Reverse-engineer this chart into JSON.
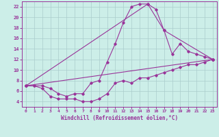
{
  "xlabel": "Windchill (Refroidissement éolien,°C)",
  "bg_color": "#cceee8",
  "grid_color": "#aacccc",
  "line_color": "#993399",
  "ylim": [
    3,
    23
  ],
  "xlim": [
    -0.5,
    23.5
  ],
  "yticks": [
    4,
    6,
    8,
    10,
    12,
    14,
    16,
    18,
    20,
    22
  ],
  "xticks": [
    0,
    1,
    2,
    3,
    4,
    5,
    6,
    7,
    8,
    9,
    10,
    11,
    12,
    13,
    14,
    15,
    16,
    17,
    18,
    19,
    20,
    21,
    22,
    23
  ],
  "lines": [
    {
      "x": [
        0,
        1,
        2,
        3,
        4,
        5,
        6,
        7,
        8,
        9,
        10,
        11,
        12,
        13,
        14,
        15,
        16,
        17,
        18,
        19,
        20,
        21,
        22,
        23
      ],
      "y": [
        7,
        7,
        6.5,
        5,
        4.5,
        4.5,
        4.5,
        4.0,
        4.0,
        4.5,
        5.5,
        7.5,
        8.0,
        7.5,
        8.5,
        8.5,
        9.0,
        9.5,
        10.0,
        10.5,
        11.0,
        11.0,
        11.5,
        12.0
      ]
    },
    {
      "x": [
        0,
        1,
        2,
        3,
        4,
        5,
        6,
        7,
        8,
        9,
        10,
        11,
        12,
        13,
        14,
        15,
        16,
        17,
        18,
        19,
        20,
        21,
        22,
        23
      ],
      "y": [
        7,
        7,
        7,
        6.5,
        5.5,
        5.0,
        5.5,
        5.5,
        7.5,
        8.0,
        11.5,
        15,
        19,
        22,
        22.5,
        22.5,
        21.5,
        17.5,
        13,
        15,
        13.5,
        13.0,
        12.5,
        12.0
      ]
    },
    {
      "x": [
        0,
        23
      ],
      "y": [
        7,
        12
      ]
    },
    {
      "x": [
        0,
        15,
        17,
        23
      ],
      "y": [
        7,
        22.5,
        17.5,
        12
      ]
    }
  ]
}
